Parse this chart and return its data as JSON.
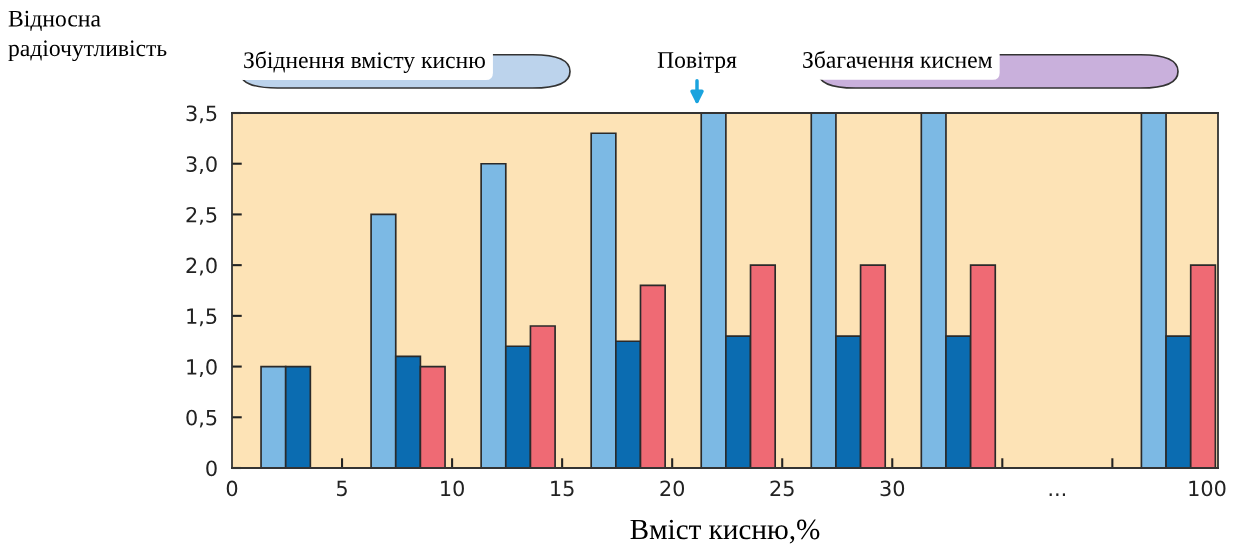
{
  "chart_data": {
    "type": "bar",
    "ylabel": "Відносна\nрадіочутливість",
    "xlabel": "Вміст кисню,%",
    "categories": [
      null,
      null,
      null,
      null,
      null,
      null,
      null,
      null,
      null
    ],
    "series": [
      {
        "color": "#7cb9e4",
        "values": [
          1.0,
          2.5,
          3.0,
          3.3,
          3.5,
          3.5,
          3.5,
          null,
          3.5
        ]
      },
      {
        "color": "#0b6cb1",
        "values": [
          1.0,
          1.1,
          1.2,
          1.25,
          1.3,
          1.3,
          1.3,
          null,
          1.3
        ]
      },
      {
        "color": "#ef6a74",
        "values": [
          null,
          1.0,
          1.4,
          1.8,
          2.0,
          2.0,
          2.0,
          null,
          2.0
        ]
      }
    ],
    "ylim": [
      0,
      3.5
    ],
    "yticks": [
      {
        "value": 0,
        "label": "0"
      },
      {
        "value": 0.5,
        "label": "0,5"
      },
      {
        "value": 1.0,
        "label": "1,0"
      },
      {
        "value": 1.5,
        "label": "1,5"
      },
      {
        "value": 2.0,
        "label": "2,0"
      },
      {
        "value": 2.5,
        "label": "2,5"
      },
      {
        "value": 3.0,
        "label": "3,0"
      },
      {
        "value": 3.5,
        "label": "3,5"
      }
    ],
    "annotations": [
      "Збіднення вмісту кисню",
      "Повітря",
      "Збагачення киснем",
      "0",
      "5",
      "10",
      "15",
      "20",
      "25",
      "30",
      "...",
      "100"
    ],
    "grid": false,
    "legend": false
  }
}
